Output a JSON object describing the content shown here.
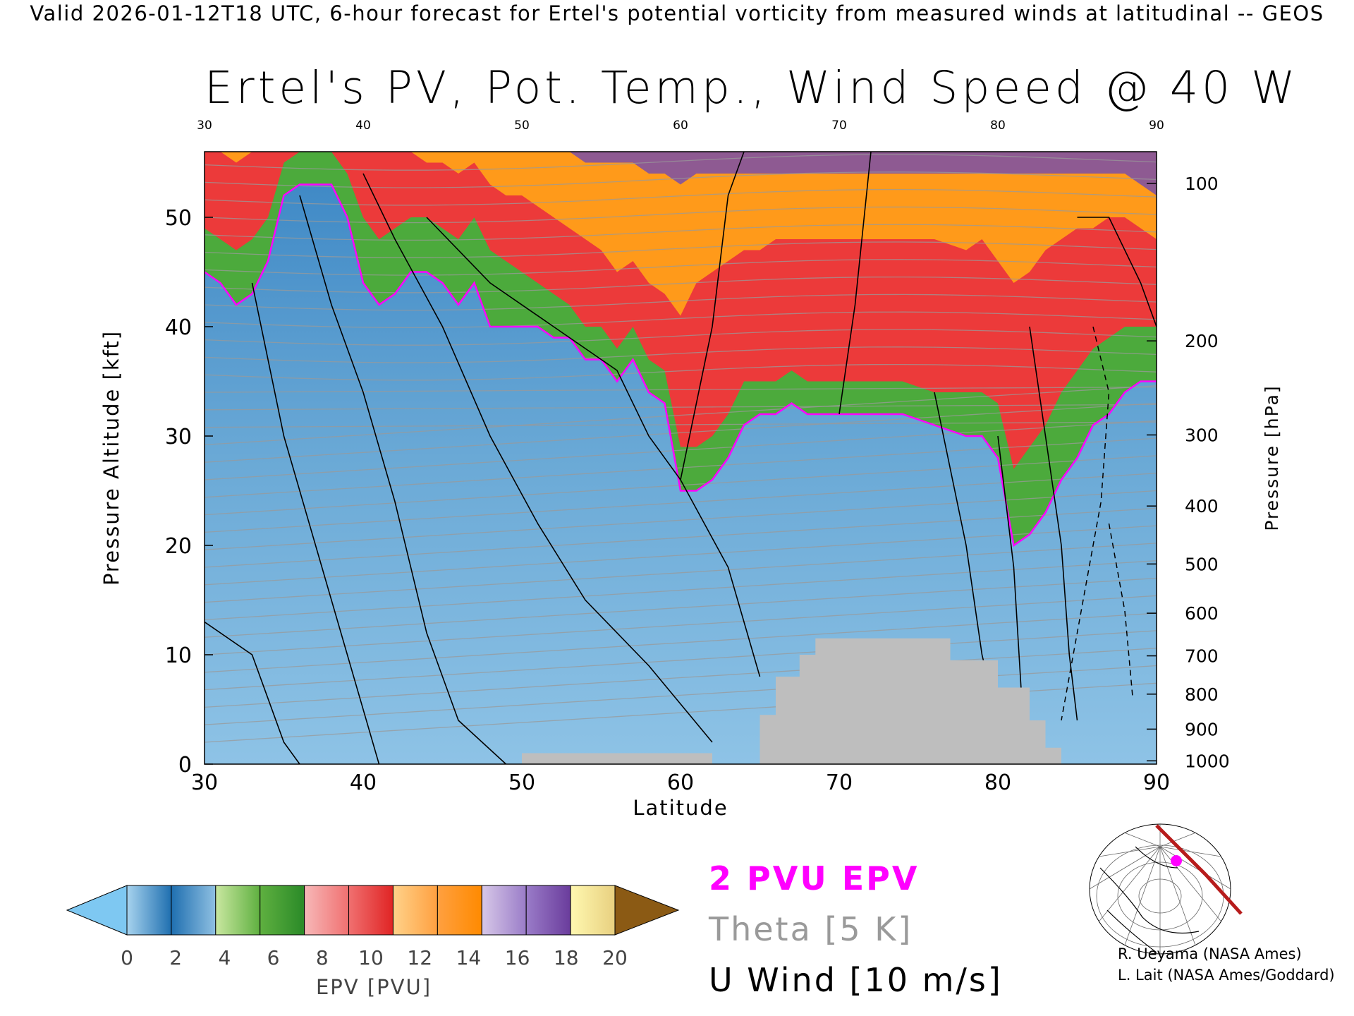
{
  "header_line": "Valid 2026-01-12T18 UTC, 6-hour forecast for Ertel's potential vorticity from measured winds at latitudinal -- GEOS",
  "title": "Ertel's PV, Pot. Temp., Wind Speed @ 40 W",
  "legend": {
    "epv_label": "2 PVU EPV",
    "theta_label": "Theta [5 K]",
    "uwind_label": "U Wind [10 m/s]",
    "epv_color": "#ff00ff",
    "theta_color": "#9a9a9a",
    "uwind_color": "#000000"
  },
  "credits": [
    "R. Ueyama (NASA Ames)",
    "L. Lait (NASA Ames/Goddard)"
  ],
  "colorbar": {
    "label": "EPV [PVU]",
    "ticks": [
      "0",
      "2",
      "4",
      "6",
      "8",
      "10",
      "12",
      "14",
      "16",
      "18",
      "20"
    ],
    "under_color": "#7ec8f2",
    "over_color": "#8b5a14",
    "segments": [
      [
        "#a7d3ee",
        "#1f6fb0"
      ],
      [
        "#1f6fb0",
        "#8fc0e2"
      ],
      [
        "#c9e7a0",
        "#5fb040"
      ],
      [
        "#5fb040",
        "#2a8a28"
      ],
      [
        "#f7b8b8",
        "#f07070"
      ],
      [
        "#f07070",
        "#e02424"
      ],
      [
        "#ffd28a",
        "#ffa040"
      ],
      [
        "#ffa040",
        "#ff8a00"
      ],
      [
        "#d7c8e8",
        "#9a7cc8"
      ],
      [
        "#9a7cc8",
        "#6a3c9c"
      ],
      [
        "#fff8b0",
        "#e8d080"
      ]
    ]
  },
  "chart_data": {
    "type": "heatmap",
    "title": "Ertel's PV, Pot. Temp., Wind Speed @ 40 W",
    "xlabel": "Latitude",
    "ylabel_left": "Pressure Altitude [kft]",
    "ylabel_right": "Pressure [hPa]",
    "xlim": [
      30,
      90
    ],
    "ylim_kft": [
      0,
      56
    ],
    "x_ticks": [
      30,
      40,
      50,
      60,
      70,
      80,
      90
    ],
    "y_ticks_kft": [
      0,
      10,
      20,
      30,
      40,
      50
    ],
    "pressure_ticks": [
      {
        "hPa": 100,
        "kft": 53.1
      },
      {
        "hPa": 200,
        "kft": 38.7
      },
      {
        "hPa": 300,
        "kft": 30.1
      },
      {
        "hPa": 400,
        "kft": 23.6
      },
      {
        "hPa": 500,
        "kft": 18.3
      },
      {
        "hPa": 600,
        "kft": 13.8
      },
      {
        "hPa": 700,
        "kft": 9.9
      },
      {
        "hPa": 800,
        "kft": 6.4
      },
      {
        "hPa": 900,
        "kft": 3.2
      },
      {
        "hPa": 1000,
        "kft": 0.3
      }
    ],
    "tropopause_2pvu": {
      "lat": [
        30,
        31,
        32,
        33,
        34,
        35,
        36,
        37,
        38,
        39,
        40,
        41,
        42,
        43,
        44,
        45,
        46,
        47,
        48,
        49,
        50,
        51,
        52,
        53,
        54,
        55,
        56,
        57,
        58,
        59,
        60,
        61,
        62,
        63,
        64,
        65,
        66,
        67,
        68,
        70,
        72,
        74,
        76,
        78,
        79,
        80,
        81,
        82,
        83,
        84,
        85,
        86,
        87,
        88,
        89,
        90
      ],
      "kft": [
        45,
        44,
        42,
        43,
        46,
        52,
        53,
        53,
        53,
        50,
        44,
        42,
        43,
        45,
        45,
        44,
        42,
        44,
        40,
        40,
        40,
        40,
        39,
        39,
        37,
        37,
        35,
        37,
        34,
        33,
        25,
        25,
        26,
        28,
        31,
        32,
        32,
        33,
        32,
        32,
        32,
        32,
        31,
        30,
        30,
        28,
        20,
        21,
        23,
        26,
        28,
        31,
        32,
        34,
        35,
        35
      ]
    },
    "epv_bands_kft": [
      {
        "pvu_from": 2,
        "pvu_to": 6,
        "color": "#4caa3c",
        "top": [
          49,
          48,
          47,
          48,
          50,
          55,
          56,
          56,
          56,
          54,
          50,
          48,
          49,
          50,
          50,
          49,
          48,
          50,
          47,
          46,
          45,
          44,
          43,
          42,
          40,
          40,
          38,
          40,
          37,
          36,
          29,
          29,
          30,
          32,
          35,
          35,
          35,
          36,
          35,
          35,
          35,
          35,
          34,
          34,
          34,
          33,
          27,
          29,
          31,
          34,
          36,
          38,
          39,
          40,
          40,
          40
        ]
      },
      {
        "pvu_from": 6,
        "pvu_to": 12,
        "color": "#ec3a3a",
        "top": [
          56,
          56,
          55,
          56,
          56,
          56,
          56,
          56,
          56,
          56,
          56,
          56,
          56,
          56,
          55,
          55,
          54,
          55,
          53,
          52,
          52,
          51,
          50,
          49,
          48,
          47,
          45,
          46,
          44,
          43,
          41,
          44,
          45,
          46,
          47,
          47,
          48,
          48,
          48,
          48,
          48,
          48,
          48,
          47,
          48,
          46,
          44,
          45,
          47,
          48,
          49,
          49,
          50,
          50,
          49,
          48
        ]
      },
      {
        "pvu_from": 12,
        "pvu_to": 14,
        "color": "#ff9a1a",
        "top": [
          56,
          56,
          56,
          56,
          56,
          56,
          56,
          56,
          56,
          56,
          56,
          56,
          56,
          56,
          56,
          56,
          56,
          56,
          56,
          56,
          56,
          56,
          56,
          56,
          55,
          55,
          55,
          55,
          54,
          54,
          53,
          54,
          54,
          54,
          54,
          54,
          54,
          54,
          54,
          54,
          54,
          54,
          54,
          54,
          54,
          54,
          54,
          54,
          54,
          54,
          54,
          54,
          54,
          54,
          53,
          52
        ]
      }
    ],
    "u_wind_contours_ms": [
      0,
      10,
      20,
      30,
      40,
      50
    ],
    "theta_interval_K": 5,
    "terrain_masked": true
  }
}
